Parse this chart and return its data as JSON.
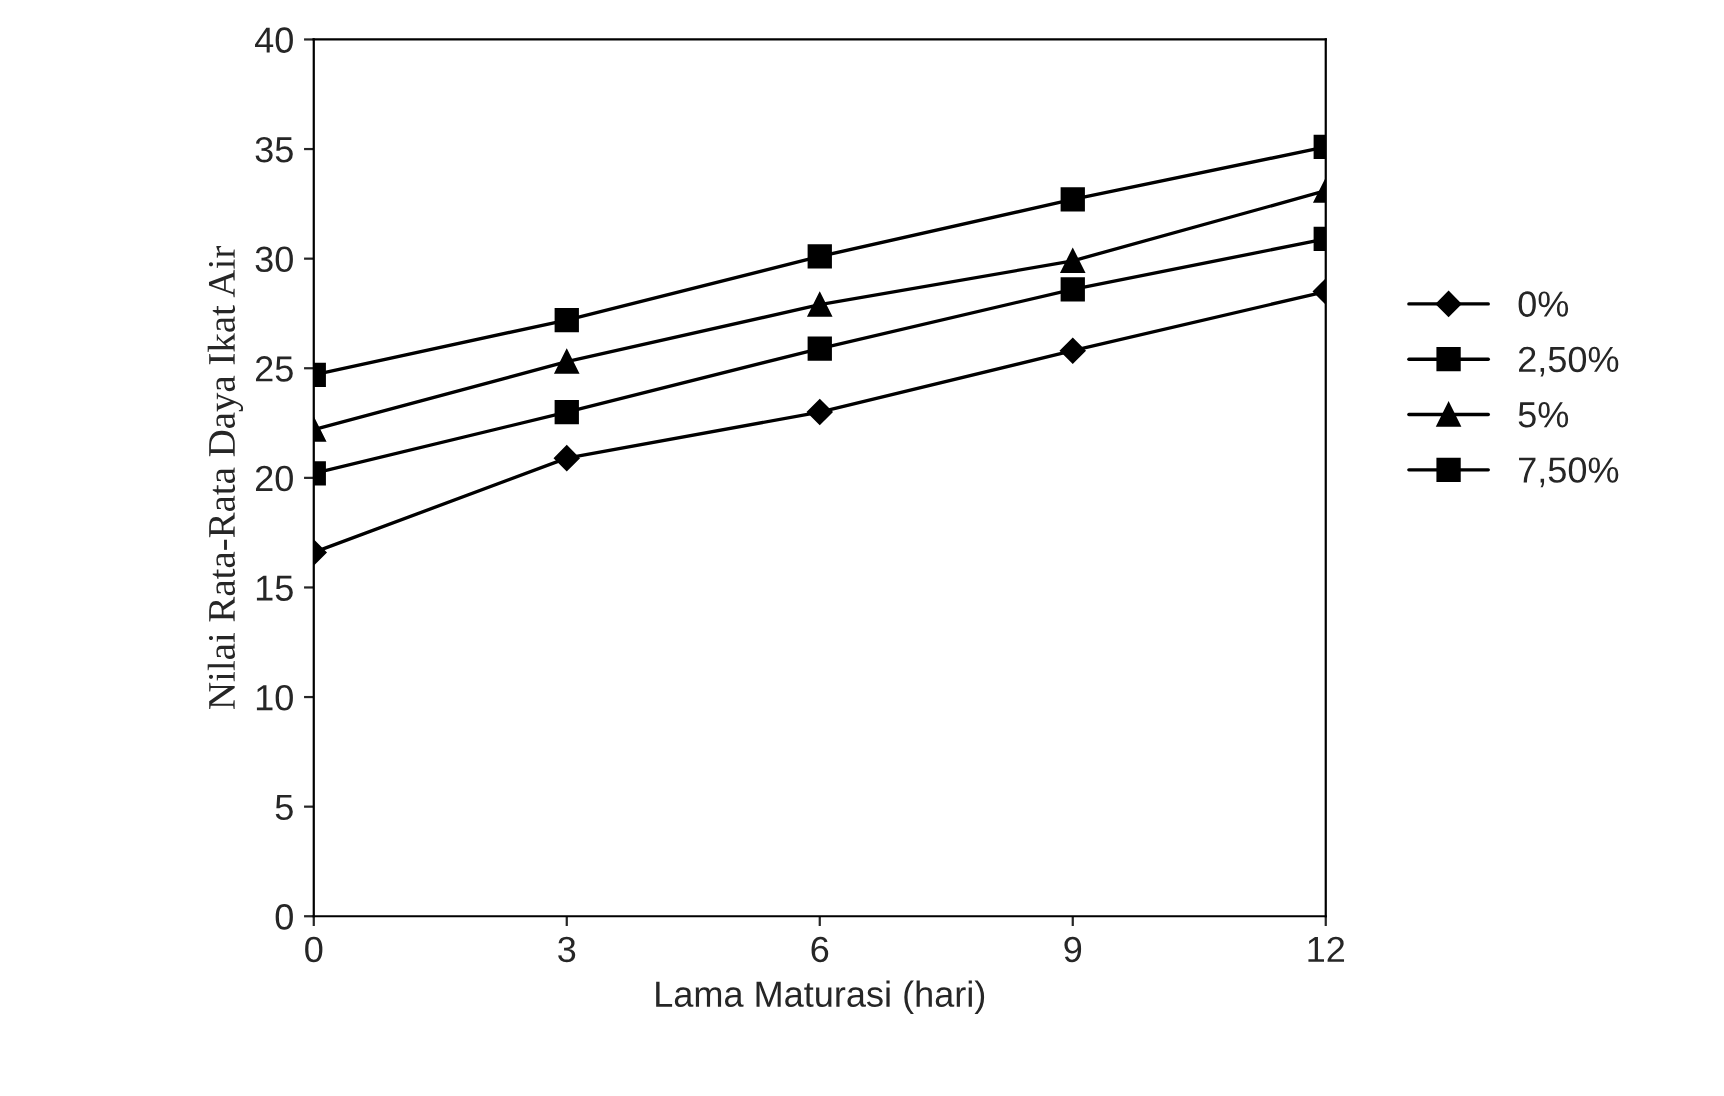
{
  "chart_data": {
    "type": "line",
    "xlabel": "Lama Maturasi (hari)",
    "ylabel": "Nilai Rata-Rata Daya Ikat Air",
    "x": [
      0,
      3,
      6,
      9,
      12
    ],
    "series": [
      {
        "name": "0%",
        "color": "#000000",
        "marker": "diamond",
        "values": [
          16.6,
          20.9,
          23.0,
          25.8,
          28.5
        ]
      },
      {
        "name": "2,50%",
        "color": "#000000",
        "marker": "square",
        "values": [
          20.2,
          23.0,
          25.9,
          28.6,
          30.9
        ]
      },
      {
        "name": "5%",
        "color": "#000000",
        "marker": "triangle",
        "values": [
          22.2,
          25.3,
          27.9,
          29.9,
          33.1
        ]
      },
      {
        "name": "7,50%",
        "color": "#000000",
        "marker": "square",
        "values": [
          24.7,
          27.2,
          30.1,
          32.7,
          35.1
        ]
      }
    ],
    "xlim": [
      0,
      12
    ],
    "xticks": [
      0,
      3,
      6,
      9,
      12
    ],
    "ylim": [
      0,
      40
    ],
    "yticks": [
      0,
      5,
      10,
      15,
      20,
      25,
      30,
      35,
      40
    ],
    "grid": false,
    "legend": "right",
    "line_style": "solid"
  }
}
